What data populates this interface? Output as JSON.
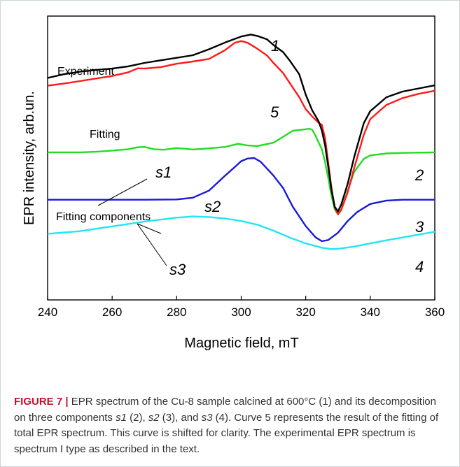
{
  "colors": {
    "experiment": "#000000",
    "fitting": "#ff1a1a",
    "s1": "#22dd22",
    "s2": "#1a1ad6",
    "s3": "#22e6f0",
    "caption_label": "#c8102e",
    "text": "#333333",
    "frame": "#cfd4d8"
  },
  "chart_data": {
    "type": "line",
    "xlabel": "Magnetic field, mT",
    "ylabel": "EPR intensity, arb.un.",
    "xlim": [
      240,
      360
    ],
    "ylim": [
      0,
      100
    ],
    "y_tick_labels_shown": false,
    "grid": false,
    "xticks": [
      240,
      260,
      280,
      300,
      320,
      340,
      360
    ],
    "xtick_labels": [
      "240",
      "260",
      "280",
      "300",
      "320",
      "340",
      "360"
    ],
    "series": [
      {
        "name": "Experiment",
        "number": "1",
        "color": "#000000",
        "points": [
          [
            240,
            78.2
          ],
          [
            245,
            79.5
          ],
          [
            250,
            80.4
          ],
          [
            255,
            81.0
          ],
          [
            260,
            81.5
          ],
          [
            265,
            82.3
          ],
          [
            270,
            83.5
          ],
          [
            275,
            84.4
          ],
          [
            280,
            85.3
          ],
          [
            285,
            86.2
          ],
          [
            290,
            88.3
          ],
          [
            295,
            90.7
          ],
          [
            300,
            92.8
          ],
          [
            303,
            93.5
          ],
          [
            305,
            93.0
          ],
          [
            308,
            91.8
          ],
          [
            310,
            89.8
          ],
          [
            313,
            87.3
          ],
          [
            315,
            84.4
          ],
          [
            318,
            79.5
          ],
          [
            320,
            72.3
          ],
          [
            322,
            66.8
          ],
          [
            324,
            62.9
          ],
          [
            325,
            59.7
          ],
          [
            326,
            54.5
          ],
          [
            327,
            46.8
          ],
          [
            328,
            38.6
          ],
          [
            329,
            32.8
          ],
          [
            330,
            31.2
          ],
          [
            331,
            33.6
          ],
          [
            333,
            40.9
          ],
          [
            335,
            50.3
          ],
          [
            338,
            62.3
          ],
          [
            340,
            66.5
          ],
          [
            345,
            71.4
          ],
          [
            350,
            73.4
          ],
          [
            355,
            74.5
          ],
          [
            360,
            75.6
          ]
        ]
      },
      {
        "name": "Fitting",
        "number": "5",
        "color": "#ff1a1a",
        "points": [
          [
            240,
            75.5
          ],
          [
            245,
            76.2
          ],
          [
            250,
            77.1
          ],
          [
            255,
            78.0
          ],
          [
            260,
            78.9
          ],
          [
            265,
            80.2
          ],
          [
            268,
            81.6
          ],
          [
            270,
            81.5
          ],
          [
            275,
            82.0
          ],
          [
            280,
            83.2
          ],
          [
            285,
            84.0
          ],
          [
            290,
            84.9
          ],
          [
            295,
            88.0
          ],
          [
            298,
            90.6
          ],
          [
            300,
            91.2
          ],
          [
            302,
            90.6
          ],
          [
            305,
            88.5
          ],
          [
            308,
            86.1
          ],
          [
            310,
            83.5
          ],
          [
            313,
            79.9
          ],
          [
            315,
            76.5
          ],
          [
            318,
            71.4
          ],
          [
            320,
            67.2
          ],
          [
            322,
            64.6
          ],
          [
            324,
            62.4
          ],
          [
            325,
            61.7
          ],
          [
            326,
            56.9
          ],
          [
            327,
            48.1
          ],
          [
            328,
            39.3
          ],
          [
            329,
            32.5
          ],
          [
            330,
            30.2
          ],
          [
            331,
            31.8
          ],
          [
            333,
            37.9
          ],
          [
            335,
            46.4
          ],
          [
            338,
            58.2
          ],
          [
            340,
            63.7
          ],
          [
            345,
            68.7
          ],
          [
            350,
            71.1
          ],
          [
            355,
            72.6
          ],
          [
            360,
            73.7
          ]
        ]
      },
      {
        "name": "s1",
        "number": "2",
        "color": "#22dd22",
        "points": [
          [
            240,
            52.0
          ],
          [
            245,
            52.0
          ],
          [
            250,
            52.0
          ],
          [
            255,
            52.2
          ],
          [
            260,
            52.6
          ],
          [
            265,
            53.1
          ],
          [
            268,
            53.8
          ],
          [
            270,
            53.9
          ],
          [
            273,
            53.1
          ],
          [
            276,
            52.9
          ],
          [
            280,
            53.5
          ],
          [
            283,
            53.2
          ],
          [
            285,
            53.0
          ],
          [
            288,
            53.2
          ],
          [
            290,
            53.4
          ],
          [
            295,
            53.9
          ],
          [
            299,
            55.0
          ],
          [
            302,
            54.4
          ],
          [
            305,
            54.2
          ],
          [
            310,
            55.4
          ],
          [
            313,
            57.5
          ],
          [
            316,
            59.6
          ],
          [
            319,
            60.0
          ],
          [
            321,
            60.3
          ],
          [
            322,
            60.0
          ],
          [
            323,
            57.9
          ],
          [
            324,
            55.5
          ],
          [
            325,
            53.1
          ],
          [
            326,
            48.6
          ],
          [
            327,
            42.8
          ],
          [
            328,
            36.6
          ],
          [
            329,
            31.9
          ],
          [
            330,
            30.1
          ],
          [
            331,
            31.6
          ],
          [
            333,
            38.4
          ],
          [
            335,
            45.1
          ],
          [
            338,
            49.7
          ],
          [
            340,
            50.9
          ],
          [
            345,
            51.6
          ],
          [
            350,
            51.8
          ],
          [
            355,
            51.9
          ],
          [
            360,
            52.0
          ]
        ]
      },
      {
        "name": "s2",
        "number": "3",
        "color": "#1a1ad6",
        "points": [
          [
            240,
            35.3
          ],
          [
            250,
            35.3
          ],
          [
            260,
            35.3
          ],
          [
            270,
            35.3
          ],
          [
            280,
            35.4
          ],
          [
            285,
            36.0
          ],
          [
            290,
            38.5
          ],
          [
            295,
            43.8
          ],
          [
            298,
            46.8
          ],
          [
            300,
            48.9
          ],
          [
            302,
            49.8
          ],
          [
            304,
            50.0
          ],
          [
            306,
            48.7
          ],
          [
            310,
            43.8
          ],
          [
            313,
            39.4
          ],
          [
            316,
            32.8
          ],
          [
            320,
            26.0
          ],
          [
            323,
            22.1
          ],
          [
            325,
            20.7
          ],
          [
            327,
            21.1
          ],
          [
            330,
            23.7
          ],
          [
            333,
            27.8
          ],
          [
            336,
            31.0
          ],
          [
            340,
            33.8
          ],
          [
            345,
            35.0
          ],
          [
            350,
            35.3
          ],
          [
            360,
            35.3
          ]
        ]
      },
      {
        "name": "s3",
        "number": "4",
        "color": "#22e6f0",
        "points": [
          [
            240,
            23.3
          ],
          [
            250,
            24.2
          ],
          [
            260,
            25.9
          ],
          [
            270,
            27.6
          ],
          [
            280,
            29.0
          ],
          [
            285,
            29.4
          ],
          [
            290,
            29.2
          ],
          [
            295,
            28.7
          ],
          [
            300,
            27.8
          ],
          [
            305,
            26.5
          ],
          [
            310,
            24.4
          ],
          [
            315,
            22.0
          ],
          [
            320,
            19.9
          ],
          [
            325,
            18.4
          ],
          [
            328,
            17.9
          ],
          [
            330,
            18.0
          ],
          [
            335,
            18.8
          ],
          [
            340,
            19.9
          ],
          [
            345,
            21.0
          ],
          [
            350,
            22.0
          ],
          [
            355,
            23.0
          ],
          [
            360,
            24.0
          ]
        ]
      }
    ],
    "annotations": {
      "experiment_label": "Experiment",
      "fitting_label": "Fitting",
      "components_label": "Fitting components",
      "s1_label": "s1",
      "s2_label": "s2",
      "s3_label": "s3",
      "curve1": "1",
      "curve5": "5",
      "curve2": "2",
      "curve3": "3",
      "curve4": "4"
    }
  },
  "caption": {
    "label": "FIGURE 7 |",
    "t1": " EPR spectrum of the Cu-8 sample calcined at 600°C (1) and its decomposition on three components ",
    "s1": "s1",
    "t2": " (2), ",
    "s2": "s2",
    "t3": " (3), and ",
    "s3": "s3",
    "t4": " (4). Curve 5 represents the result of the fitting of total EPR spectrum. This curve is shifted for clarity. The experimental EPR spectrum is spectrum I type as described in the text."
  }
}
